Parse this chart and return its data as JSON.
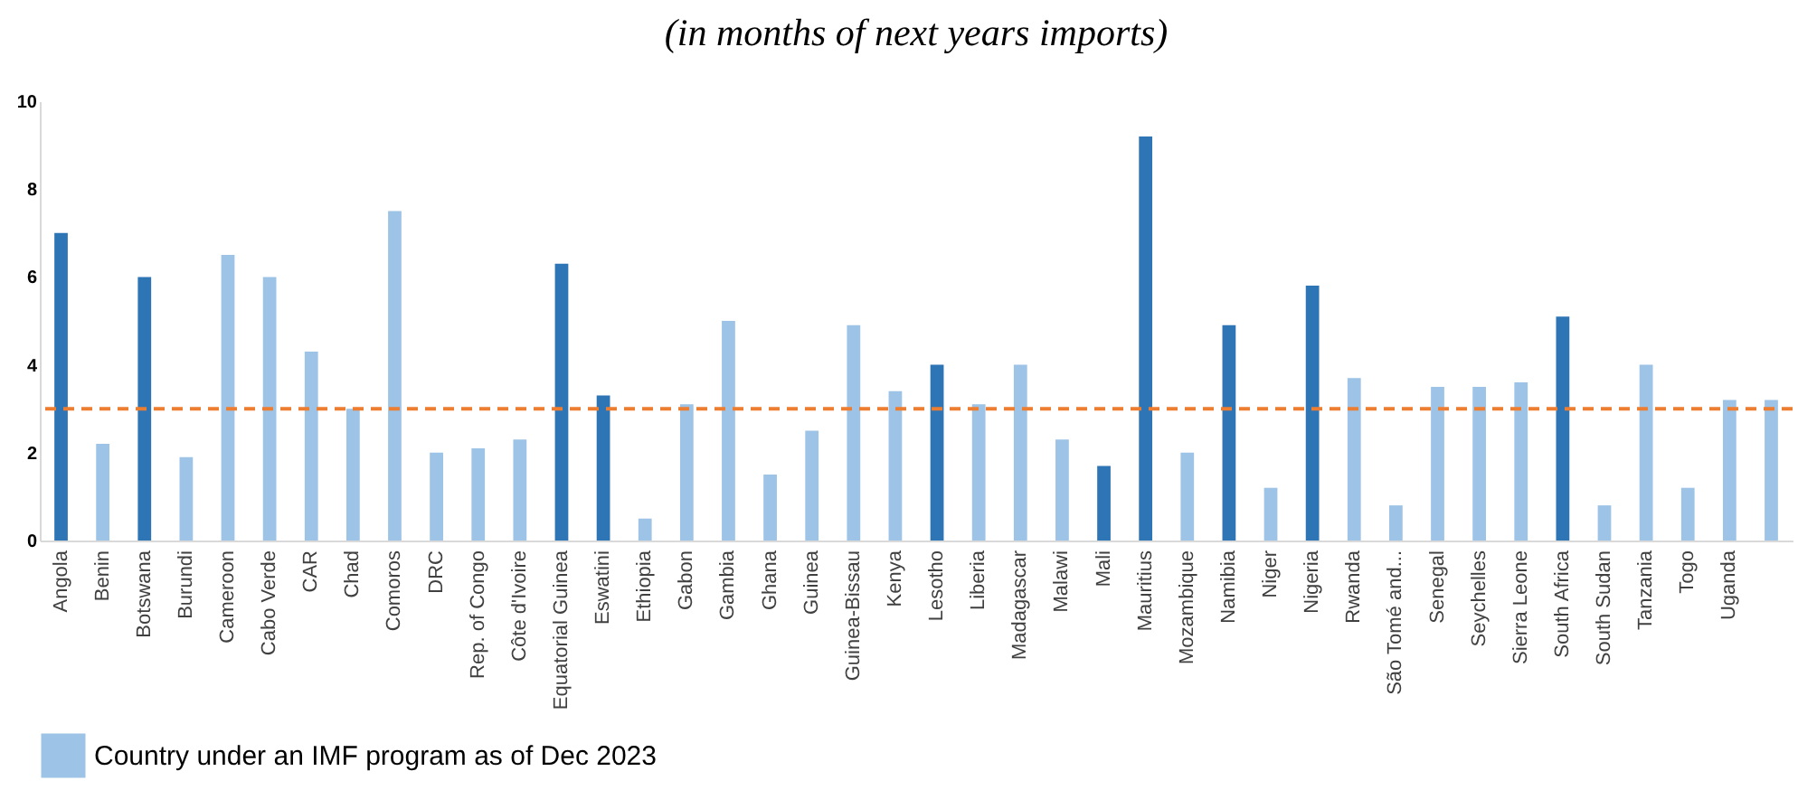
{
  "chart_data": {
    "type": "bar",
    "title": "(in months of next years imports)",
    "categories": [
      "Angola",
      "Benin",
      "Botswana",
      "Burundi",
      "Cameroon",
      "Cabo Verde",
      "CAR",
      "Chad",
      "Comoros",
      "DRC",
      "Rep. of Congo",
      "Côte d'Ivoire",
      "Equatorial Guinea",
      "Eswatini",
      "Ethiopia",
      "Gabon",
      "Gambia",
      "Ghana",
      "Guinea",
      "Guinea-Bissau",
      "Kenya",
      "Lesotho",
      "Liberia",
      "Madagascar",
      "Malawi",
      "Mali",
      "Mauritius",
      "Mozambique",
      "Namibia",
      "Niger",
      "Nigeria",
      "Rwanda",
      "São Tomé and...",
      "Senegal",
      "Seychelles",
      "Sierra Leone",
      "South Africa",
      "South Sudan",
      "Tanzania",
      "Togo",
      "Uganda",
      null
    ],
    "series": [
      {
        "name": "Country under an IMF program as of Dec 2023",
        "color": "#9dc3e6",
        "values": [
          null,
          2.2,
          null,
          1.9,
          6.5,
          6.0,
          4.3,
          3.0,
          7.5,
          2.0,
          2.1,
          2.3,
          null,
          null,
          0.5,
          3.1,
          5.0,
          1.5,
          2.5,
          4.9,
          3.4,
          null,
          3.1,
          4.0,
          2.3,
          null,
          null,
          2.0,
          null,
          1.2,
          null,
          3.7,
          0.8,
          3.5,
          3.5,
          3.6,
          null,
          0.8,
          4.0,
          1.2,
          3.2,
          3.2
        ]
      },
      {
        "color": "#2e75b6",
        "values": [
          7.0,
          null,
          6.0,
          null,
          null,
          null,
          null,
          null,
          null,
          null,
          null,
          null,
          6.3,
          3.3,
          null,
          null,
          null,
          null,
          null,
          null,
          null,
          4.0,
          null,
          null,
          null,
          1.7,
          9.2,
          null,
          4.9,
          null,
          5.8,
          null,
          null,
          null,
          null,
          null,
          5.1,
          null,
          null,
          null,
          null,
          null
        ]
      }
    ],
    "ylim": [
      0,
      10
    ],
    "yticks": [
      0,
      2,
      4,
      6,
      8,
      10
    ],
    "grid": false,
    "legend": "bottom left",
    "ref_lines": [
      {
        "axis": "y",
        "value": 3,
        "color": "#ed7d31",
        "line_style": "dashed"
      }
    ]
  }
}
